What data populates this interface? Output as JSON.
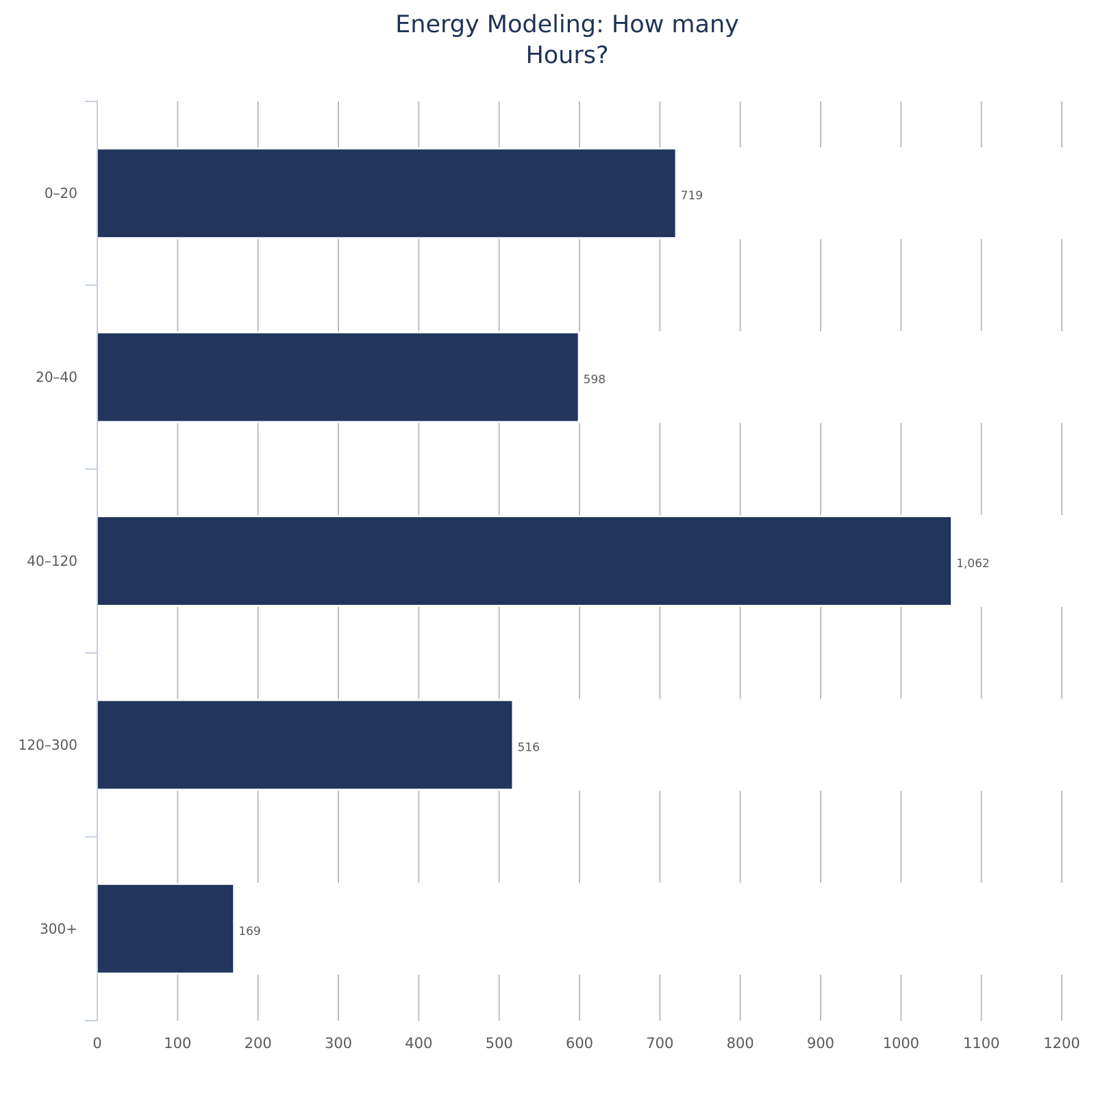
{
  "title": {
    "line1": "Energy Modeling: How many",
    "line2": "Hours?"
  },
  "colors": {
    "bar": "#21355d",
    "grid": "#bdbdbd",
    "axis": "#c3cfe0",
    "text": "#5a5a5a",
    "title": "#1f3356"
  },
  "chart_data": {
    "type": "bar",
    "orientation": "horizontal",
    "title": "Energy Modeling: How many Hours?",
    "xlabel": "",
    "ylabel": "",
    "categories": [
      "0–20",
      "20–40",
      "40–120",
      "120–300",
      "300+"
    ],
    "values": [
      719,
      598,
      1062,
      516,
      169
    ],
    "value_labels": [
      "719",
      "598",
      "1,062",
      "516",
      "169"
    ],
    "xlim": [
      0,
      1200
    ],
    "xticks": [
      0,
      100,
      200,
      300,
      400,
      500,
      600,
      700,
      800,
      900,
      1000,
      1100,
      1200
    ],
    "xtick_labels": [
      "0",
      "100",
      "200",
      "300",
      "400",
      "500",
      "600",
      "700",
      "800",
      "900",
      "1000",
      "1100",
      "1200"
    ],
    "grid": "vertical",
    "legend": "none"
  }
}
